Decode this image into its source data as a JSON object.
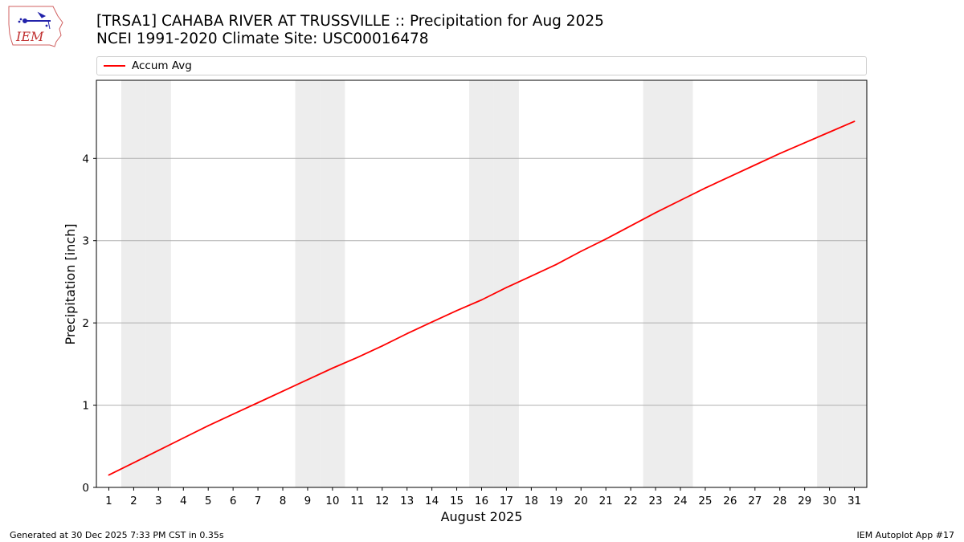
{
  "header": {
    "title_line1": "[TRSA1] CAHABA RIVER AT TRUSSVILLE :: Precipitation for Aug 2025",
    "title_line2": "NCEI 1991-2020 Climate Site: USC00016478"
  },
  "logo": {
    "text": "IEM"
  },
  "footer": {
    "generated": "Generated at 30 Dec 2025 7:33 PM CST in 0.35s",
    "app": "IEM Autoplot App #17"
  },
  "colors": {
    "series": "#ff0000",
    "weekend": "#ededed",
    "grid": "#b0b0b0"
  },
  "chart_data": {
    "type": "line",
    "xlabel": "August 2025",
    "ylabel": "Precipitation [inch]",
    "x": [
      1,
      2,
      3,
      4,
      5,
      6,
      7,
      8,
      9,
      10,
      11,
      12,
      13,
      14,
      15,
      16,
      17,
      18,
      19,
      20,
      21,
      22,
      23,
      24,
      25,
      26,
      27,
      28,
      29,
      30,
      31
    ],
    "xlim": [
      0.5,
      31.5
    ],
    "ylim": [
      0,
      4.95
    ],
    "yticks": [
      0,
      1,
      2,
      3,
      4
    ],
    "grid": "y",
    "legend_placement": "top",
    "weekend_days": [
      2,
      3,
      9,
      10,
      16,
      17,
      23,
      24,
      30,
      31
    ],
    "series": [
      {
        "name": "Accum Avg",
        "values": [
          0.15,
          0.3,
          0.45,
          0.6,
          0.75,
          0.89,
          1.03,
          1.17,
          1.31,
          1.45,
          1.58,
          1.72,
          1.87,
          2.01,
          2.15,
          2.28,
          2.43,
          2.57,
          2.71,
          2.87,
          3.02,
          3.18,
          3.34,
          3.49,
          3.64,
          3.78,
          3.92,
          4.06,
          4.19,
          4.32,
          4.45
        ]
      }
    ]
  }
}
